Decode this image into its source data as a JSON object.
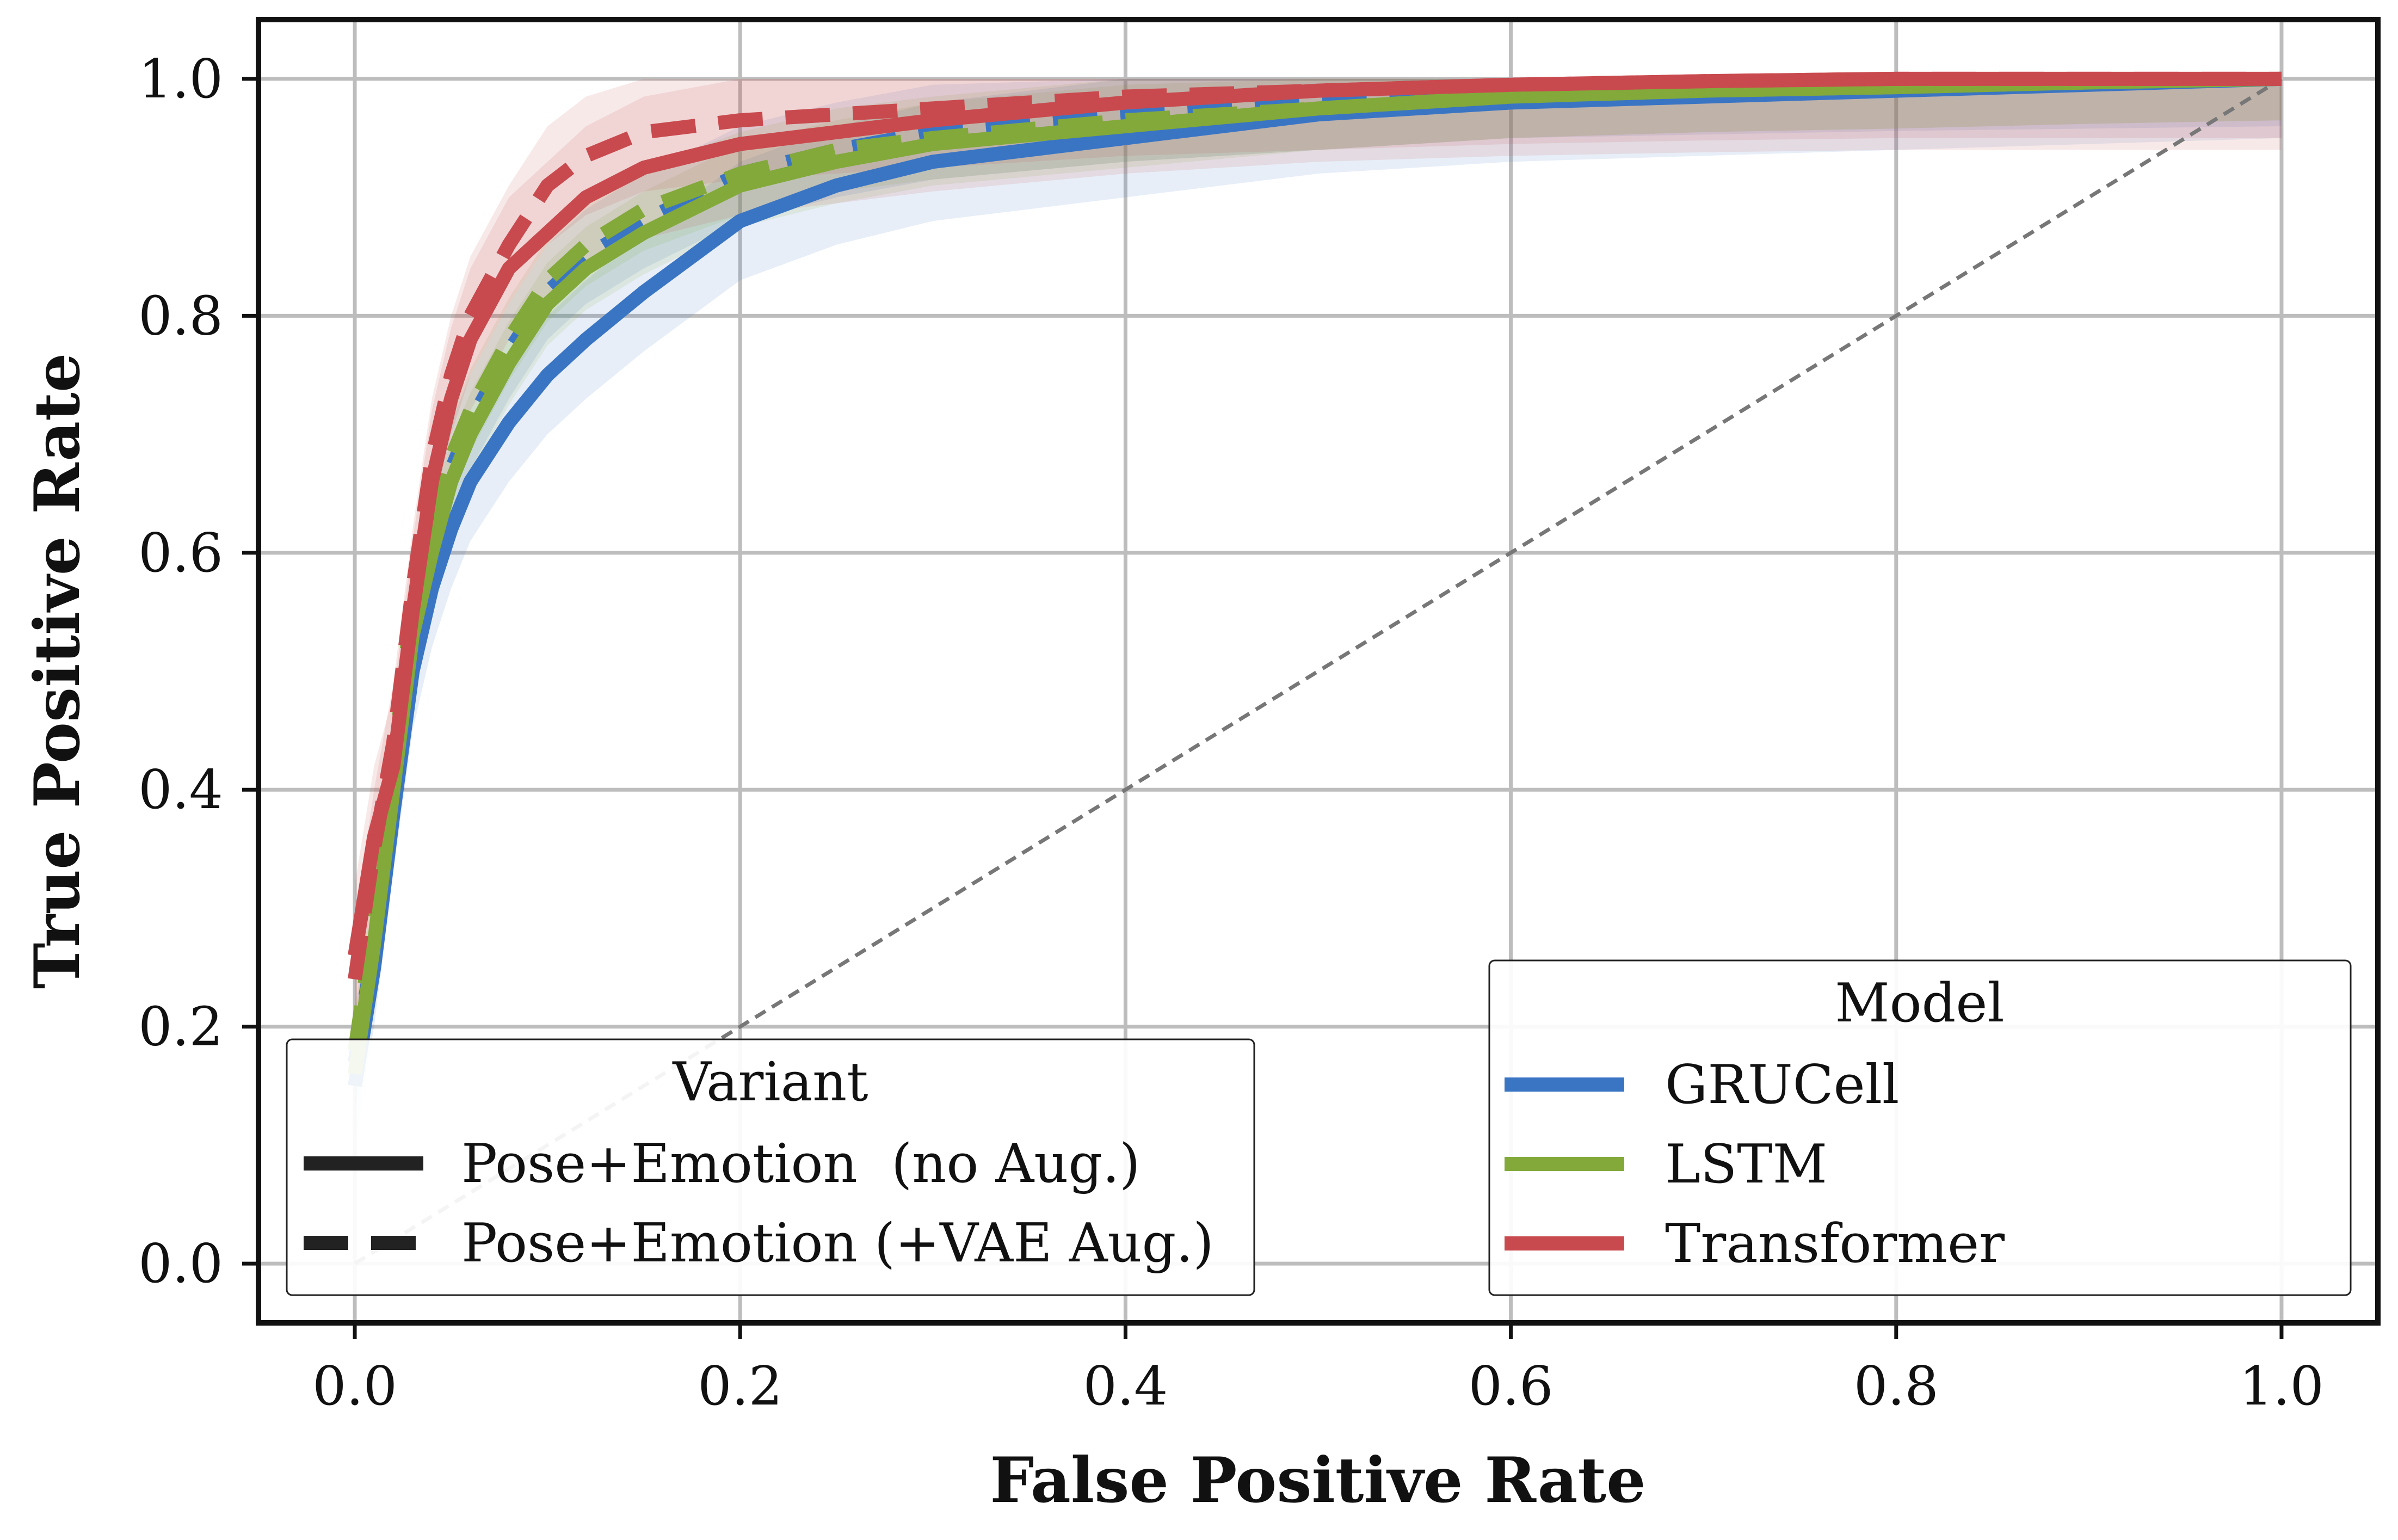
{
  "chart_data": {
    "type": "line",
    "xlabel": "False Positive Rate",
    "ylabel": "True Positive Rate",
    "xlim": [
      -0.05,
      1.05
    ],
    "ylim": [
      -0.05,
      1.05
    ],
    "grid": true,
    "x_ticks": [
      "0.0",
      "0.2",
      "0.4",
      "0.6",
      "0.8",
      "1.0"
    ],
    "y_ticks": [
      "0.0",
      "0.2",
      "0.4",
      "0.6",
      "0.8",
      "1.0"
    ],
    "colors": {
      "GRUCell": "#3a75c4",
      "LSTM": "#82a93a",
      "Transformer": "#c94a4e",
      "diagonal": "#777777"
    },
    "diagonal": {
      "x": [
        0.0,
        1.0
      ],
      "y": [
        0.0,
        1.0
      ],
      "style": "dashed"
    },
    "series": [
      {
        "name": "GRUCell (no Aug.)",
        "model": "GRUCell",
        "variant": "solid",
        "x": [
          0.0,
          0.01,
          0.02,
          0.03,
          0.04,
          0.05,
          0.06,
          0.08,
          0.1,
          0.12,
          0.15,
          0.2,
          0.25,
          0.3,
          0.4,
          0.5,
          0.6,
          0.7,
          0.8,
          0.9,
          1.0
        ],
        "y": [
          0.15,
          0.25,
          0.38,
          0.5,
          0.57,
          0.62,
          0.66,
          0.71,
          0.75,
          0.78,
          0.82,
          0.88,
          0.91,
          0.93,
          0.95,
          0.97,
          0.98,
          0.985,
          0.99,
          0.995,
          1.0
        ],
        "band": 0.05
      },
      {
        "name": "GRUCell (+VAE Aug.)",
        "model": "GRUCell",
        "variant": "dashed",
        "x": [
          0.0,
          0.01,
          0.02,
          0.03,
          0.04,
          0.05,
          0.06,
          0.08,
          0.1,
          0.12,
          0.15,
          0.2,
          0.25,
          0.3,
          0.4,
          0.5,
          0.6,
          0.7,
          0.8,
          0.9,
          1.0
        ],
        "y": [
          0.17,
          0.27,
          0.4,
          0.54,
          0.62,
          0.67,
          0.71,
          0.77,
          0.82,
          0.85,
          0.88,
          0.92,
          0.94,
          0.955,
          0.97,
          0.98,
          0.99,
          0.993,
          0.996,
          0.998,
          1.0
        ],
        "band": 0.04
      },
      {
        "name": "LSTM (no Aug.)",
        "model": "LSTM",
        "variant": "solid",
        "x": [
          0.0,
          0.01,
          0.02,
          0.03,
          0.04,
          0.05,
          0.06,
          0.08,
          0.1,
          0.12,
          0.15,
          0.2,
          0.25,
          0.3,
          0.4,
          0.5,
          0.6,
          0.7,
          0.8,
          0.9,
          1.0
        ],
        "y": [
          0.16,
          0.27,
          0.4,
          0.53,
          0.6,
          0.66,
          0.7,
          0.76,
          0.81,
          0.84,
          0.87,
          0.91,
          0.93,
          0.945,
          0.96,
          0.975,
          0.985,
          0.99,
          0.993,
          0.997,
          1.0
        ],
        "band": 0.035
      },
      {
        "name": "LSTM (+VAE Aug.)",
        "model": "LSTM",
        "variant": "dashed",
        "x": [
          0.0,
          0.01,
          0.02,
          0.03,
          0.04,
          0.05,
          0.06,
          0.08,
          0.1,
          0.12,
          0.15,
          0.2,
          0.25,
          0.3,
          0.4,
          0.5,
          0.6,
          0.7,
          0.8,
          0.9,
          1.0
        ],
        "y": [
          0.18,
          0.29,
          0.42,
          0.56,
          0.63,
          0.68,
          0.72,
          0.78,
          0.83,
          0.86,
          0.89,
          0.92,
          0.94,
          0.95,
          0.965,
          0.975,
          0.985,
          0.99,
          0.993,
          0.997,
          1.0
        ],
        "band": 0.035
      },
      {
        "name": "Transformer (no Aug.)",
        "model": "Transformer",
        "variant": "solid",
        "x": [
          0.0,
          0.01,
          0.02,
          0.03,
          0.04,
          0.05,
          0.06,
          0.08,
          0.1,
          0.12,
          0.15,
          0.2,
          0.25,
          0.3,
          0.4,
          0.5,
          0.6,
          0.7,
          0.8,
          0.9,
          1.0
        ],
        "y": [
          0.26,
          0.36,
          0.42,
          0.55,
          0.66,
          0.73,
          0.78,
          0.84,
          0.87,
          0.9,
          0.925,
          0.945,
          0.955,
          0.965,
          0.98,
          0.99,
          0.995,
          0.998,
          1.0,
          1.0,
          1.0
        ],
        "band": 0.06
      },
      {
        "name": "Transformer (+VAE Aug.)",
        "model": "Transformer",
        "variant": "dashed",
        "x": [
          0.0,
          0.01,
          0.02,
          0.03,
          0.04,
          0.05,
          0.06,
          0.08,
          0.1,
          0.12,
          0.15,
          0.2,
          0.25,
          0.3,
          0.4,
          0.5,
          0.6,
          0.7,
          0.8,
          0.9,
          1.0
        ],
        "y": [
          0.24,
          0.35,
          0.44,
          0.57,
          0.68,
          0.75,
          0.8,
          0.86,
          0.91,
          0.935,
          0.955,
          0.965,
          0.97,
          0.975,
          0.985,
          0.99,
          0.995,
          0.998,
          1.0,
          1.0,
          1.0
        ],
        "band": 0.05
      }
    ],
    "legend_variant": {
      "title": "Variant",
      "placement": "lower-left",
      "entries": [
        {
          "label": "Pose+Emotion  (no Aug.)",
          "style": "solid"
        },
        {
          "label": "Pose+Emotion (+VAE Aug.)",
          "style": "dashed"
        }
      ]
    },
    "legend_model": {
      "title": "Model",
      "placement": "lower-right",
      "entries": [
        {
          "label": "GRUCell",
          "model": "GRUCell"
        },
        {
          "label": "LSTM",
          "model": "LSTM"
        },
        {
          "label": "Transformer",
          "model": "Transformer"
        }
      ]
    }
  }
}
